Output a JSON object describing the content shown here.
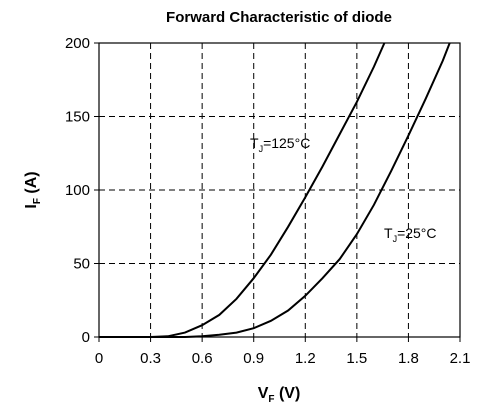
{
  "chart_data": {
    "type": "line",
    "title": "Forward Characteristic of diode",
    "xlabel": {
      "main": "V",
      "sub": "F",
      "suffix": " (V)"
    },
    "ylabel": {
      "main": "I",
      "sub": "F",
      "suffix": " (A)"
    },
    "xlim": [
      0,
      2.1
    ],
    "ylim": [
      0,
      200
    ],
    "x_ticks": [
      0,
      0.3,
      0.6,
      0.9,
      1.2,
      1.5,
      1.8,
      2.1
    ],
    "x_tick_labels": [
      "0",
      "0.3",
      "0.6",
      "0.9",
      "1.2",
      "1.5",
      "1.8",
      "2.1"
    ],
    "y_ticks": [
      0,
      50,
      100,
      150,
      200
    ],
    "y_tick_labels": [
      "0",
      "50",
      "100",
      "150",
      "200"
    ],
    "grid": true,
    "series": [
      {
        "name": "T_J=125°C",
        "label": {
          "main": "T",
          "sub": "J",
          "suffix": "=125°C"
        },
        "points": [
          [
            0.3,
            0
          ],
          [
            0.4,
            0.5
          ],
          [
            0.5,
            3
          ],
          [
            0.6,
            8
          ],
          [
            0.7,
            15
          ],
          [
            0.8,
            26
          ],
          [
            0.9,
            40
          ],
          [
            1.0,
            56
          ],
          [
            1.1,
            75
          ],
          [
            1.2,
            95
          ],
          [
            1.3,
            116
          ],
          [
            1.4,
            138
          ],
          [
            1.5,
            160
          ],
          [
            1.6,
            184
          ],
          [
            1.66,
            200
          ]
        ]
      },
      {
        "name": "T_J=25°C",
        "label": {
          "main": "T",
          "sub": "J",
          "suffix": "=25°C"
        },
        "points": [
          [
            0.5,
            0
          ],
          [
            0.6,
            0.5
          ],
          [
            0.7,
            1.5
          ],
          [
            0.8,
            3
          ],
          [
            0.9,
            6
          ],
          [
            1.0,
            11
          ],
          [
            1.1,
            18
          ],
          [
            1.2,
            28
          ],
          [
            1.3,
            40
          ],
          [
            1.4,
            53
          ],
          [
            1.5,
            70
          ],
          [
            1.6,
            90
          ],
          [
            1.7,
            113
          ],
          [
            1.8,
            137
          ],
          [
            1.9,
            162
          ],
          [
            2.0,
            188
          ],
          [
            2.04,
            200
          ]
        ]
      }
    ]
  }
}
